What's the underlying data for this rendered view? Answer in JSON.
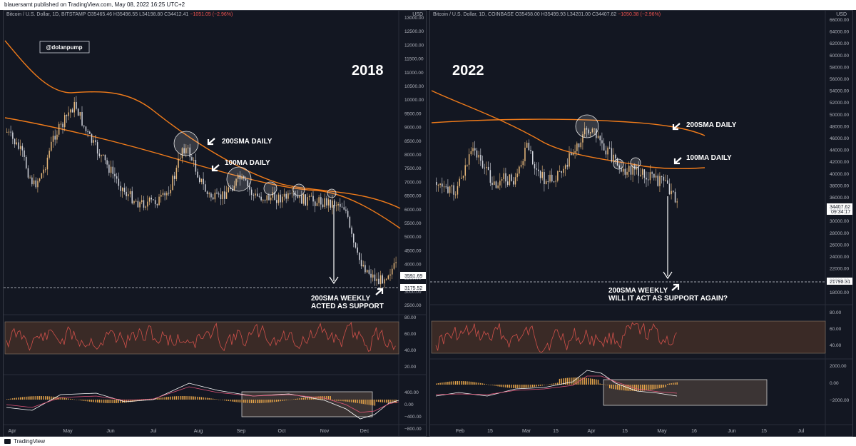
{
  "header": {
    "publisher": "blauersamt published on TradingView.com, May 08, 2022 16:25 UTC+2"
  },
  "footer": {
    "brand": "TradingView"
  },
  "colors": {
    "background": "#131722",
    "candle_up": "#e8b87a",
    "candle_down": "#d1d4dc",
    "ma": "#f07b1a",
    "rsi": "#d0504a",
    "macd": "#ffffff",
    "signal": "#e5567a",
    "hist": "#e8a64a"
  },
  "left": {
    "symbol_name": "Bitcoin / U.S. Dollar, 1D, BITSTAMP",
    "ohlc": "O35465.46 H35496.55 L34198.80 C34412.41",
    "change": "−1051.05 (−2.96%)",
    "usd_badge": "USD",
    "watermark": "@dolanpump",
    "year": "2018",
    "label_200sma": "200SMA DAILY",
    "label_100ma": "100MA DAILY",
    "note_line1": "200SMA WEEKLY",
    "note_line2": "ACTED AS SUPPORT",
    "price_tag_1": "3591.69",
    "price_tag_2": "3175.52",
    "price_axis": [
      "13000.00",
      "12500.00",
      "12000.00",
      "11500.00",
      "11000.00",
      "10500.00",
      "10000.00",
      "9500.00",
      "9000.00",
      "8500.00",
      "8000.00",
      "7500.00",
      "7000.00",
      "6500.00",
      "6000.00",
      "5500.00",
      "5000.00",
      "4500.00",
      "4000.00",
      "3500.00",
      "3000.00",
      "2500.00"
    ],
    "rsi_axis": [
      "80.00",
      "60.00",
      "40.00",
      "20.00"
    ],
    "macd_axis": [
      "400.00",
      "0.00",
      "−400.00",
      "−800.00"
    ],
    "time_axis": [
      "Apr",
      "May",
      "Jun",
      "Jul",
      "Aug",
      "Sep",
      "Oct",
      "Nov",
      "Dec"
    ]
  },
  "right": {
    "symbol_name": "Bitcoin / U.S. Dollar, 1D, COINBASE",
    "ohlc": "O35458.00 H35499.93 L34201.00 C34407.62",
    "change": "−1050.38 (−2.96%)",
    "usd_badge": "USD",
    "year": "2022",
    "label_200sma": "200SMA DAILY",
    "label_100ma": "100MA DAILY",
    "note_line1": "200SMA WEEKLY",
    "note_line2": "WILL IT ACT AS SUPPORT AGAIN?",
    "price_tag_1": "34407.62",
    "price_tag_1_sub": "09:34:17",
    "price_tag_2": "21798.31",
    "price_axis": [
      "66000.00",
      "64000.00",
      "62000.00",
      "60000.00",
      "58000.00",
      "56000.00",
      "54000.00",
      "52000.00",
      "50000.00",
      "48000.00",
      "46000.00",
      "44000.00",
      "42000.00",
      "40000.00",
      "38000.00",
      "36000.00",
      "32000.00",
      "30000.00",
      "28000.00",
      "26000.00",
      "24000.00",
      "22000.00",
      "20000.00",
      "18000.00"
    ],
    "rsi_axis": [
      "80.00",
      "60.00",
      "40.00"
    ],
    "macd_axis": [
      "2000.00",
      "0.00",
      "−2000.00"
    ],
    "time_axis": [
      "Feb",
      "15",
      "Mar",
      "15",
      "Apr",
      "15",
      "May",
      "16",
      "Jun",
      "15",
      "Jul"
    ]
  },
  "chart_data": [
    {
      "type": "line",
      "title": "Bitcoin / U.S. Dollar, 1D, BITSTAMP",
      "series": [
        {
          "name": "",
          "x": [
            "Apr",
            "May",
            "Jun",
            "Jul",
            "Aug",
            "Sep",
            "Oct",
            "Nov",
            "Dec"
          ],
          "values": [
            7000,
            9200,
            6500,
            6300,
            7400,
            7000,
            6500,
            6400,
            3700
          ]
        }
      ],
      "ylim": [
        2500,
        13000
      ]
    },
    {
      "type": "line",
      "title": "Bitcoin / U.S. Dollar, 1D, COINBASE",
      "series": [
        {
          "name": "",
          "x": [
            "Feb",
            "Mar",
            "Apr",
            "May"
          ],
          "values": [
            38000,
            39000,
            46000,
            34400
          ]
        }
      ],
      "ylim": [
        18000,
        66000
      ]
    }
  ]
}
